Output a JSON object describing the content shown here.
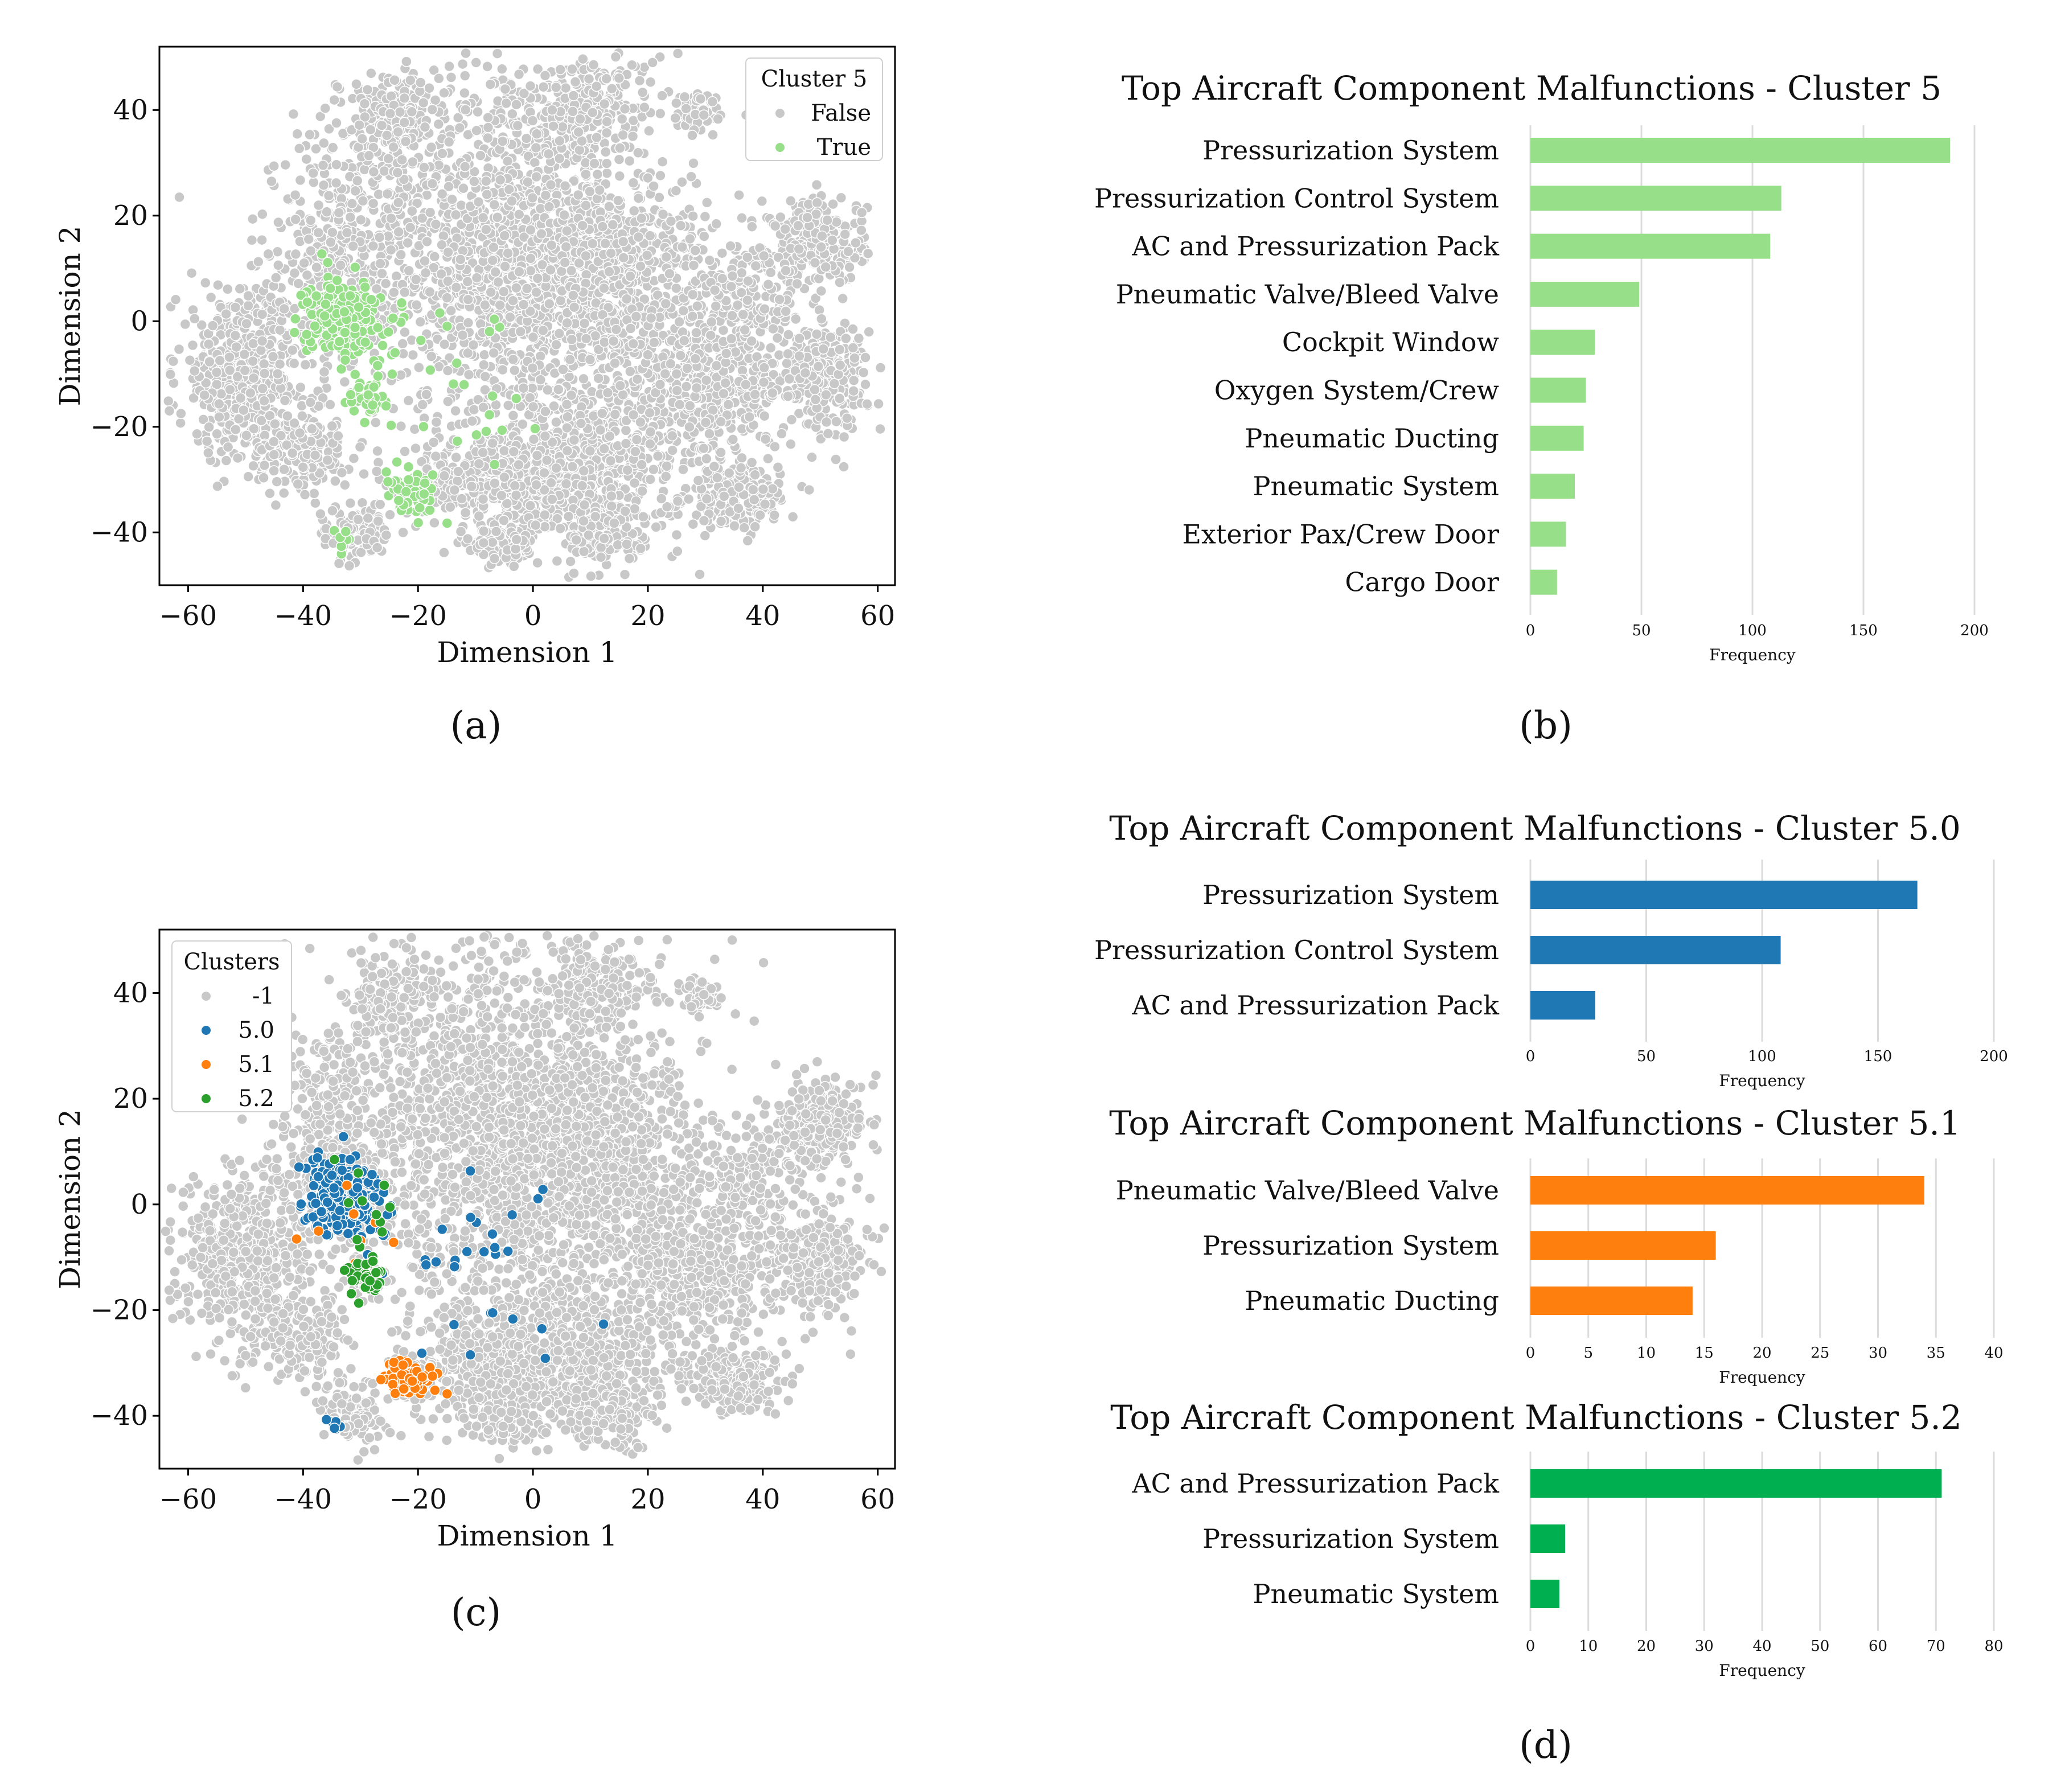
{
  "panel_labels": [
    "(a)",
    "(b)",
    "(c)",
    "(d)"
  ],
  "chart_data": [
    {
      "id": "a",
      "type": "scatter",
      "title": "",
      "xlabel": "Dimension 1",
      "ylabel": "Dimension 2",
      "xlim": [
        -65,
        63
      ],
      "ylim": [
        -50,
        52
      ],
      "xticks": [
        -60,
        -40,
        -20,
        0,
        20,
        40,
        60
      ],
      "yticks": [
        -40,
        -20,
        0,
        20,
        40
      ],
      "legend": {
        "title": "Cluster 5",
        "placement": "top-right",
        "entries": [
          {
            "label": "False",
            "color": "#c8c8c8"
          },
          {
            "label": "True",
            "color": "#98df8a"
          }
        ]
      },
      "series": [
        {
          "name": "False",
          "color": "#c8c8c8",
          "clusters": [
            {
              "cx": -5,
              "cy": 15,
              "sx": 14,
              "sy": 18,
              "n": 1600
            },
            {
              "cx": 12,
              "cy": 8,
              "sx": 10,
              "sy": 10,
              "n": 700
            },
            {
              "cx": -50,
              "cy": -10,
              "sx": 6,
              "sy": 8,
              "n": 550
            },
            {
              "cx": 30,
              "cy": -12,
              "sx": 7,
              "sy": 7,
              "n": 450
            },
            {
              "cx": 50,
              "cy": -10,
              "sx": 4,
              "sy": 5,
              "n": 280
            },
            {
              "cx": 50,
              "cy": 15,
              "sx": 4,
              "sy": 4,
              "n": 250
            },
            {
              "cx": 35,
              "cy": -33,
              "sx": 4,
              "sy": 3,
              "n": 220
            },
            {
              "cx": 8,
              "cy": -28,
              "sx": 9,
              "sy": 8,
              "n": 600
            },
            {
              "cx": -8,
              "cy": -30,
              "sx": 6,
              "sy": 5,
              "n": 280
            },
            {
              "cx": -40,
              "cy": -25,
              "sx": 4,
              "sy": 4,
              "n": 160
            },
            {
              "cx": -35,
              "cy": 15,
              "sx": 5,
              "sy": 10,
              "n": 280
            },
            {
              "cx": -25,
              "cy": 38,
              "sx": 4,
              "sy": 5,
              "n": 160
            },
            {
              "cx": 10,
              "cy": 42,
              "sx": 5,
              "sy": 4,
              "n": 160
            },
            {
              "cx": 29,
              "cy": 39,
              "sx": 2,
              "sy": 2,
              "n": 60
            },
            {
              "cx": -31,
              "cy": -40,
              "sx": 3,
              "sy": 3,
              "n": 100
            },
            {
              "cx": -5,
              "cy": -42,
              "sx": 3,
              "sy": 2,
              "n": 80
            },
            {
              "cx": 13,
              "cy": -40,
              "sx": 4,
              "sy": 3,
              "n": 130
            },
            {
              "cx": 38,
              "cy": 5,
              "sx": 5,
              "sy": 5,
              "n": 150
            }
          ]
        },
        {
          "name": "True",
          "color": "#98df8a",
          "clusters": [
            {
              "cx": -33,
              "cy": 1,
              "sx": 3.2,
              "sy": 3.5,
              "n": 260
            },
            {
              "cx": -29,
              "cy": -14,
              "sx": 1.6,
              "sy": 2.0,
              "n": 40
            },
            {
              "cx": -21,
              "cy": -33,
              "sx": 2.2,
              "sy": 2.0,
              "n": 75
            },
            {
              "cx": -33,
              "cy": -42,
              "sx": 1.0,
              "sy": 1.0,
              "n": 8
            },
            {
              "cx": -15,
              "cy": -15,
              "sx": 8,
              "sy": 10,
              "n": 25
            }
          ]
        }
      ]
    },
    {
      "id": "b",
      "type": "bar",
      "orientation": "horizontal",
      "title": "Top Aircraft Component Malfunctions - Cluster 5",
      "xlabel": "Frequency",
      "ylabel": "",
      "xlim": [
        0,
        200
      ],
      "xticks": [
        0,
        50,
        100,
        150,
        200
      ],
      "categories": [
        "Pressurization System",
        "Pressurization Control System",
        "AC and Pressurization Pack",
        "Pneumatic Valve/Bleed Valve",
        "Cockpit Window",
        "Oxygen System/Crew",
        "Pneumatic Ducting",
        "Pneumatic System",
        "Exterior Pax/Crew Door",
        "Cargo Door"
      ],
      "values": [
        189,
        113,
        108,
        49,
        29,
        25,
        24,
        20,
        16,
        12
      ],
      "color": "#98df8a",
      "grid": "x"
    },
    {
      "id": "c",
      "type": "scatter",
      "title": "",
      "xlabel": "Dimension 1",
      "ylabel": "Dimension 2",
      "xlim": [
        -65,
        63
      ],
      "ylim": [
        -50,
        52
      ],
      "xticks": [
        -60,
        -40,
        -20,
        0,
        20,
        40,
        60
      ],
      "yticks": [
        -40,
        -20,
        0,
        20,
        40
      ],
      "legend": {
        "title": "Clusters",
        "placement": "top-left",
        "entries": [
          {
            "label": "-1",
            "color": "#c8c8c8"
          },
          {
            "label": "5.0",
            "color": "#1f77b4"
          },
          {
            "label": "5.1",
            "color": "#ff7f0e"
          },
          {
            "label": "5.2",
            "color": "#2ca02c"
          }
        ]
      },
      "series": [
        {
          "name": "-1",
          "color": "#c8c8c8",
          "clusters": "same as panel a False + a True"
        },
        {
          "name": "5.0",
          "color": "#1f77b4",
          "clusters": [
            {
              "cx": -33,
              "cy": 1,
              "sx": 3.2,
              "sy": 3.5,
              "n": 250
            },
            {
              "cx": -34,
              "cy": -42,
              "sx": 1.2,
              "sy": 1.0,
              "n": 8
            },
            {
              "cx": -10,
              "cy": -12,
              "sx": 10,
              "sy": 8,
              "n": 30
            }
          ]
        },
        {
          "name": "5.1",
          "color": "#ff7f0e",
          "clusters": [
            {
              "cx": -21,
              "cy": -33,
              "sx": 2.2,
              "sy": 2.0,
              "n": 75
            },
            {
              "cx": -30,
              "cy": -5,
              "sx": 4,
              "sy": 4,
              "n": 8
            }
          ]
        },
        {
          "name": "5.2",
          "color": "#2ca02c",
          "clusters": [
            {
              "cx": -29,
              "cy": -14,
              "sx": 1.7,
              "sy": 2.0,
              "n": 45
            },
            {
              "cx": -30,
              "cy": 0,
              "sx": 4,
              "sy": 5,
              "n": 12
            }
          ]
        }
      ]
    },
    {
      "id": "d1",
      "type": "bar",
      "orientation": "horizontal",
      "title": "Top Aircraft Component Malfunctions - Cluster 5.0",
      "xlabel": "Frequency",
      "xlim": [
        0,
        200
      ],
      "xticks": [
        0,
        50,
        100,
        150,
        200
      ],
      "categories": [
        "Pressurization System",
        "Pressurization Control System",
        "AC and Pressurization Pack"
      ],
      "values": [
        167,
        108,
        28
      ],
      "color": "#1f77b4",
      "grid": "x"
    },
    {
      "id": "d2",
      "type": "bar",
      "orientation": "horizontal",
      "title": "Top Aircraft Component Malfunctions - Cluster 5.1",
      "xlabel": "Frequency",
      "xlim": [
        0,
        40
      ],
      "xticks": [
        0,
        5,
        10,
        15,
        20,
        25,
        30,
        35,
        40
      ],
      "categories": [
        "Pneumatic Valve/Bleed Valve",
        "Pressurization System",
        "Pneumatic Ducting"
      ],
      "values": [
        34,
        16,
        14
      ],
      "color": "#ff7f0e",
      "grid": "x"
    },
    {
      "id": "d3",
      "type": "bar",
      "orientation": "horizontal",
      "title": "Top Aircraft Component Malfunctions - Cluster 5.2",
      "xlabel": "Frequency",
      "xlim": [
        0,
        80
      ],
      "xticks": [
        0,
        10,
        20,
        30,
        40,
        50,
        60,
        70,
        80
      ],
      "categories": [
        "AC and Pressurization Pack",
        "Pressurization System",
        "Pneumatic System"
      ],
      "values": [
        71,
        6,
        5
      ],
      "color": "#00b050",
      "grid": "x"
    }
  ]
}
